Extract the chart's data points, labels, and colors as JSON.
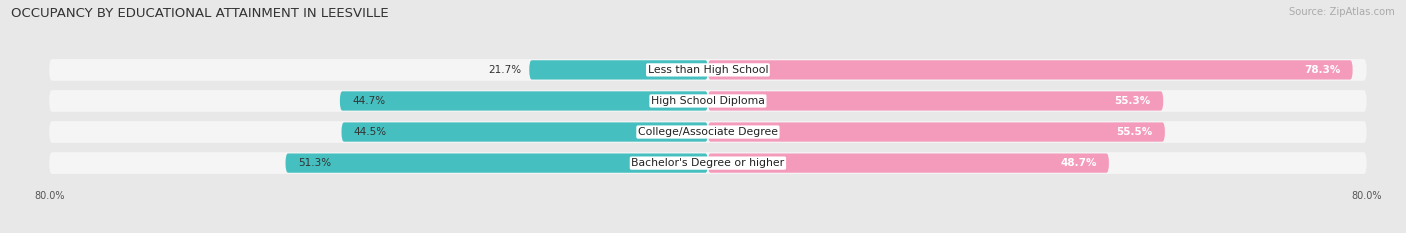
{
  "title": "OCCUPANCY BY EDUCATIONAL ATTAINMENT IN LEESVILLE",
  "source": "Source: ZipAtlas.com",
  "categories": [
    "Less than High School",
    "High School Diploma",
    "College/Associate Degree",
    "Bachelor's Degree or higher"
  ],
  "owner_pct": [
    21.7,
    44.7,
    44.5,
    51.3
  ],
  "renter_pct": [
    78.3,
    55.3,
    55.5,
    48.7
  ],
  "owner_color": "#45BFBF",
  "renter_color": "#F49BBB",
  "axis_max": 80,
  "background_color": "#e8e8e8",
  "bar_bg_color": "#f5f5f5",
  "title_fontsize": 9.5,
  "label_fontsize": 7.8,
  "value_fontsize": 7.5,
  "source_fontsize": 7.2
}
